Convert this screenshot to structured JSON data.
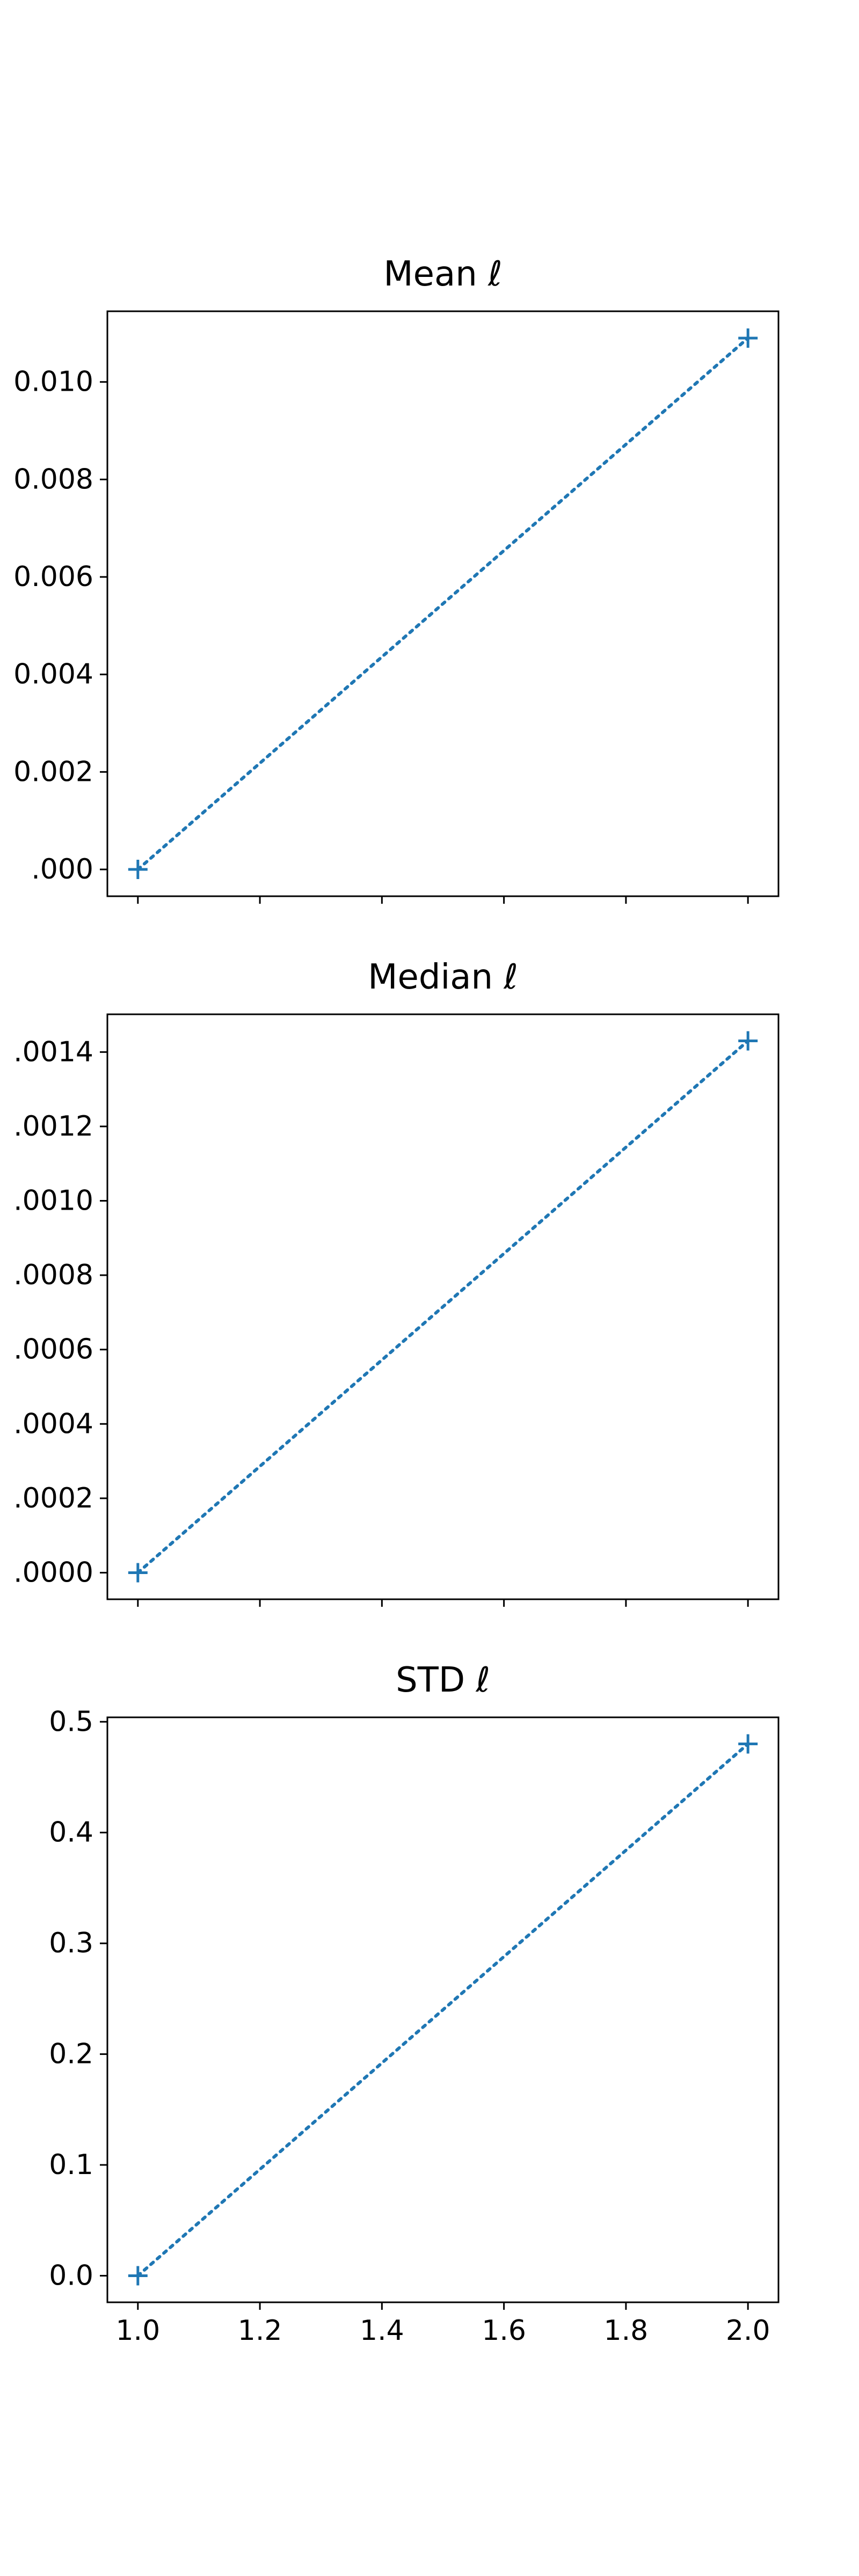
{
  "figure": {
    "background": "#ffffff",
    "line_color": "#1f77b4",
    "line_style": "dotted",
    "marker": "plus",
    "shared_x_axis": true
  },
  "chart_data": [
    {
      "type": "line",
      "title": "Mean ℓ",
      "xlabel": "",
      "ylabel": "",
      "xlim": [
        0.95,
        2.05
      ],
      "ylim": [
        -0.00055,
        0.01145
      ],
      "x": [
        1.0,
        2.0
      ],
      "series": [
        {
          "values": [
            0.0,
            0.0109
          ]
        }
      ],
      "xticks": [
        1.0,
        1.2,
        1.4,
        1.6,
        1.8,
        2.0
      ],
      "xtick_labels": [],
      "yticks": [
        0.0,
        0.002,
        0.004,
        0.006,
        0.008,
        0.01
      ],
      "ytick_labels": [
        ".000",
        "0.002",
        "0.004",
        "0.006",
        "0.008",
        "0.010"
      ],
      "grid": false,
      "legend": "none"
    },
    {
      "type": "line",
      "title": "Median ℓ",
      "xlabel": "",
      "ylabel": "",
      "xlim": [
        0.95,
        2.05
      ],
      "ylim": [
        -7.15e-05,
        0.0015015
      ],
      "x": [
        1.0,
        2.0
      ],
      "series": [
        {
          "values": [
            0.0,
            0.00143
          ]
        }
      ],
      "xticks": [
        1.0,
        1.2,
        1.4,
        1.6,
        1.8,
        2.0
      ],
      "xtick_labels": [],
      "yticks": [
        0.0,
        0.0002,
        0.0004,
        0.0006,
        0.0008,
        0.001,
        0.0012,
        0.0014
      ],
      "ytick_labels": [
        ".0000",
        ".0002",
        ".0004",
        ".0006",
        ".0008",
        ".0010",
        ".0012",
        ".0014"
      ],
      "grid": false,
      "legend": "none"
    },
    {
      "type": "line",
      "title": "STD ℓ",
      "xlabel": "",
      "ylabel": "",
      "xlim": [
        0.95,
        2.05
      ],
      "ylim": [
        -0.024,
        0.504
      ],
      "x": [
        1.0,
        2.0
      ],
      "series": [
        {
          "values": [
            0.0,
            0.48
          ]
        }
      ],
      "xticks": [
        1.0,
        1.2,
        1.4,
        1.6,
        1.8,
        2.0
      ],
      "xtick_labels": [
        "1.0",
        "1.2",
        "1.4",
        "1.6",
        "1.8",
        "2.0"
      ],
      "yticks": [
        0.0,
        0.1,
        0.2,
        0.3,
        0.4,
        0.5
      ],
      "ytick_labels": [
        "0.0",
        "0.1",
        "0.2",
        "0.3",
        "0.4",
        "0.5"
      ],
      "grid": false,
      "legend": "none"
    }
  ]
}
